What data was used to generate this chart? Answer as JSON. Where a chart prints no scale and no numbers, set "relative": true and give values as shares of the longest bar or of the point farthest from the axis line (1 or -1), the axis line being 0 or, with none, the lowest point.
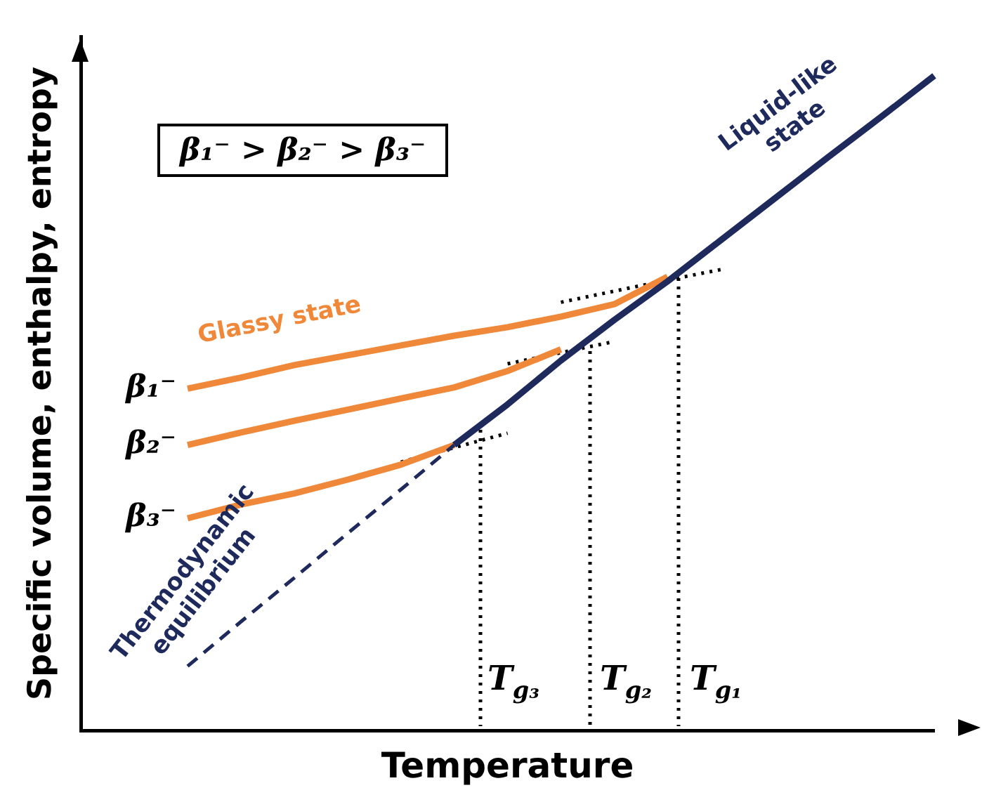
{
  "chart_data": {
    "type": "line",
    "relative": true,
    "xlabel": "Temperature",
    "ylabel": "Specific volume, enthalpy, entropy",
    "marker": "none",
    "grid": false,
    "categories": [
      null,
      null,
      null,
      null,
      null,
      null,
      null,
      null,
      null,
      null,
      null,
      null,
      null,
      null,
      null,
      null,
      null
    ],
    "series": [
      {
        "color": "#1f2a5c",
        "line_style": "solid",
        "values": [
          null,
          null,
          null,
          null,
          null,
          null,
          null,
          0.436,
          0.498,
          0.565,
          0.627,
          0.686,
          0.749,
          0.812,
          0.875,
          0.937,
          1.0
        ]
      },
      {
        "color": "#1f2a5c",
        "line_style": "dashed",
        "values": [
          null,
          null,
          0.098,
          0.166,
          0.233,
          0.301,
          0.368,
          0.436,
          null,
          null,
          null,
          null,
          null,
          null,
          null,
          null,
          null
        ]
      },
      {
        "name": "β₁⁻",
        "color": "#f0883a",
        "line_style": "solid",
        "values": [
          null,
          null,
          0.522,
          0.539,
          0.558,
          0.573,
          0.588,
          0.603,
          0.616,
          0.632,
          0.651,
          0.693,
          null,
          null,
          null,
          null,
          null
        ]
      },
      {
        "name": "β₂⁻",
        "color": "#f0883a",
        "line_style": "solid",
        "values": [
          null,
          null,
          0.436,
          0.455,
          0.473,
          0.49,
          0.507,
          0.524,
          0.549,
          0.582,
          null,
          null,
          null,
          null,
          null,
          null,
          null
        ]
      },
      {
        "name": "β₃⁻",
        "color": "#f0883a",
        "line_style": "solid",
        "values": [
          null,
          null,
          0.324,
          0.345,
          0.362,
          0.383,
          0.406,
          0.436,
          null,
          null,
          null,
          null,
          null,
          null,
          null,
          null,
          null
        ]
      },
      {
        "color": "#000000",
        "line_style": "dotted",
        "values": [
          null,
          null,
          null,
          null,
          null,
          null,
          null,
          null,
          null,
          0.654,
          0.671,
          0.688,
          0.704,
          null,
          null,
          null,
          null
        ]
      },
      {
        "color": "#000000",
        "line_style": "dotted",
        "values": [
          null,
          null,
          null,
          null,
          null,
          null,
          null,
          null,
          0.56,
          0.577,
          0.594,
          null,
          null,
          null,
          null,
          null,
          null
        ]
      },
      {
        "color": "#000000",
        "line_style": "dotted",
        "values": [
          null,
          null,
          null,
          null,
          null,
          null,
          0.41,
          0.432,
          0.454,
          null,
          null,
          null,
          null,
          null,
          null,
          null,
          null
        ]
      }
    ],
    "annotations": [
      "β₁⁻ > β₂⁻ > β₃⁻",
      "T$_{g₃}$",
      "T$_{g₂}$",
      "T$_{g₁}$",
      "Glassy state",
      "Liquid-like state",
      "Thermodynamic equilibrium"
    ]
  }
}
